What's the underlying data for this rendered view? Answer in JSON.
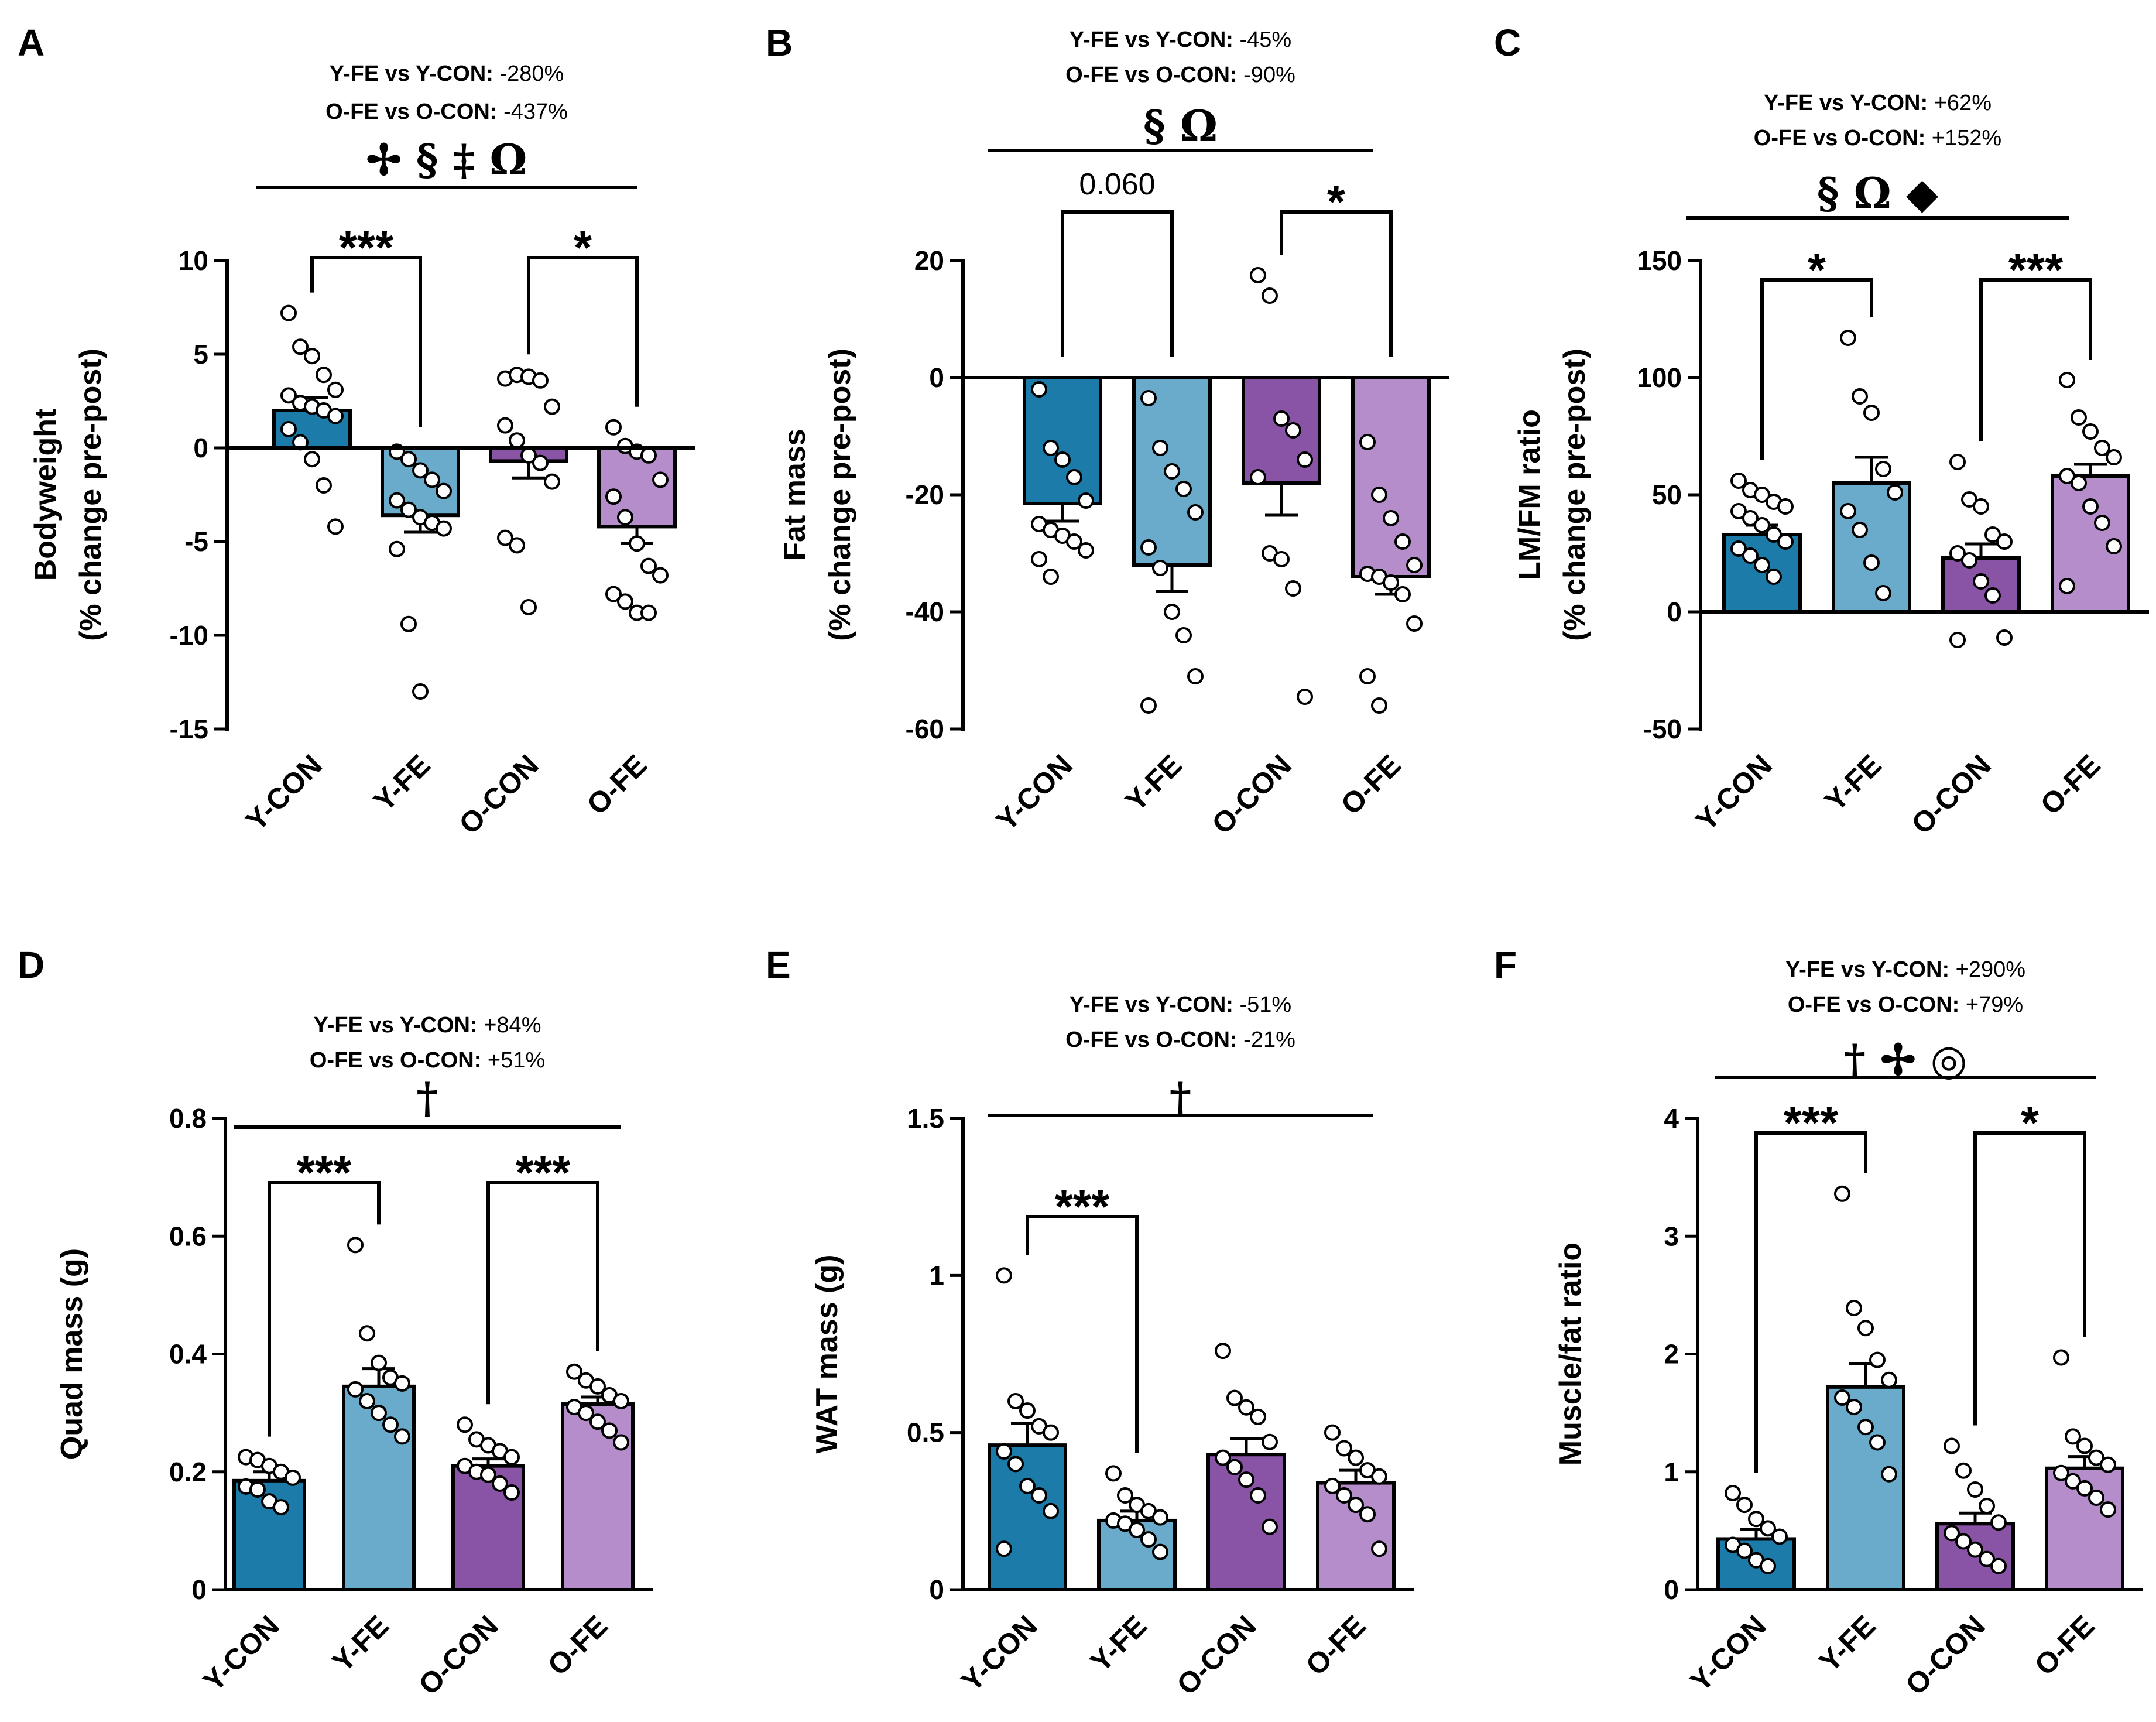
{
  "colors": {
    "Y-CON": "#1D7BAA",
    "Y-FE": "#6AAACB",
    "O-CON": "#8A54A6",
    "O-FE": "#B58DCB"
  },
  "chart_data": [
    {
      "panel": "A",
      "type": "bar",
      "categories": [
        "Y-CON",
        "Y-FE",
        "O-CON",
        "O-FE"
      ],
      "values": [
        2.0,
        -3.6,
        -0.7,
        -4.2
      ],
      "errors": [
        0.7,
        0.9,
        0.9,
        0.9
      ],
      "points": [
        [
          7.2,
          5.4,
          4.9,
          3.9,
          3.1,
          2.8,
          2.4,
          2.2,
          2.0,
          1.7,
          1.0,
          0.3,
          -0.6,
          -2.0,
          -4.2
        ],
        [
          -0.2,
          -0.6,
          -1.2,
          -1.7,
          -2.3,
          -2.8,
          -3.3,
          -3.7,
          -4.0,
          -4.3,
          -5.4,
          -9.4,
          -13.0
        ],
        [
          3.7,
          3.9,
          3.8,
          3.6,
          2.2,
          1.2,
          0.4,
          -0.4,
          -0.8,
          -1.8,
          -4.8,
          -5.2,
          -8.5
        ],
        [
          1.1,
          0.1,
          -0.2,
          -0.4,
          -1.7,
          -2.6,
          -3.7,
          -5.1,
          -6.3,
          -6.8,
          -7.8,
          -8.2,
          -8.8,
          -8.8
        ]
      ],
      "ylabel": [
        "Bodyweight",
        "(% change pre-post)"
      ],
      "ylim": [
        -15,
        10
      ],
      "yticks": [
        10,
        5,
        0,
        -5,
        -10,
        -15
      ],
      "comparisons": [
        "Y-FE vs Y-CON: -280%",
        "O-FE vs O-CON: -437%"
      ],
      "overall_symbols": "✢ § ‡ Ω",
      "brackets": [
        {
          "pair": [
            0,
            1
          ],
          "label": "***"
        },
        {
          "pair": [
            2,
            3
          ],
          "label": "*"
        }
      ]
    },
    {
      "panel": "B",
      "type": "bar",
      "categories": [
        "Y-CON",
        "Y-FE",
        "O-CON",
        "O-FE"
      ],
      "values": [
        -21.5,
        -32.0,
        -18.0,
        -34.0
      ],
      "errors": [
        3.0,
        4.5,
        5.5,
        3.0
      ],
      "points": [
        [
          -2.0,
          -12.0,
          -14.0,
          -17.0,
          -21.0,
          -25.0,
          -26.0,
          -27.0,
          -28.0,
          -29.5,
          -31.0,
          -34.0
        ],
        [
          -3.5,
          -12.0,
          -16.0,
          -19.0,
          -23.0,
          -29.0,
          -32.5,
          -40.0,
          -44.0,
          -51.0,
          -56.0
        ],
        [
          17.5,
          14.0,
          -7.0,
          -9.0,
          -14.0,
          -17.0,
          -30.0,
          -31.0,
          -36.0,
          -54.5
        ],
        [
          -11.0,
          -20.0,
          -24.0,
          -28.0,
          -32.0,
          -33.5,
          -34.0,
          -35.0,
          -37.0,
          -42.0,
          -51.0,
          -56.0
        ]
      ],
      "ylabel": [
        "Fat mass",
        "(% change pre-post)"
      ],
      "ylim": [
        -60,
        20
      ],
      "yticks": [
        20,
        0,
        -20,
        -40,
        -60
      ],
      "comparisons": [
        "Y-FE vs Y-CON: -45%",
        "O-FE vs O-CON: -90%"
      ],
      "overall_symbols": "§ Ω",
      "brackets": [
        {
          "pair": [
            0,
            1
          ],
          "label": "0.060"
        },
        {
          "pair": [
            2,
            3
          ],
          "label": "*"
        }
      ]
    },
    {
      "panel": "C",
      "type": "bar",
      "categories": [
        "Y-CON",
        "Y-FE",
        "O-CON",
        "O-FE"
      ],
      "values": [
        33.0,
        55.0,
        23.0,
        58.0
      ],
      "errors": [
        4.0,
        11.0,
        6.0,
        5.0
      ],
      "points": [
        [
          56.0,
          52.0,
          50.0,
          47.0,
          45.0,
          43.0,
          40.0,
          37.0,
          33.0,
          30.0,
          27.0,
          24.0,
          20.0,
          15.0
        ],
        [
          117.0,
          92.0,
          85.0,
          61.0,
          51.0,
          43.0,
          35.0,
          21.0,
          8.0
        ],
        [
          64.0,
          48.0,
          45.0,
          33.0,
          30.0,
          25.0,
          22.0,
          13.0,
          7.0,
          -11.0,
          -12.0
        ],
        [
          99.0,
          83.0,
          77.0,
          70.0,
          66.0,
          58.0,
          55.0,
          45.0,
          38.0,
          28.0,
          11.0
        ]
      ],
      "ylabel": [
        "LM/FM ratio",
        "(% change pre-post)"
      ],
      "ylim": [
        -50,
        150
      ],
      "yticks": [
        150,
        100,
        50,
        0,
        -50
      ],
      "comparisons": [
        "Y-FE vs Y-CON: +62%",
        "O-FE vs O-CON: +152%"
      ],
      "overall_symbols": "§ Ω ◆",
      "brackets": [
        {
          "pair": [
            0,
            1
          ],
          "label": "*"
        },
        {
          "pair": [
            2,
            3
          ],
          "label": "***"
        }
      ]
    },
    {
      "panel": "D",
      "type": "bar",
      "categories": [
        "Y-CON",
        "Y-FE",
        "O-CON",
        "O-FE"
      ],
      "values": [
        0.185,
        0.345,
        0.21,
        0.315
      ],
      "errors": [
        0.015,
        0.03,
        0.012,
        0.012
      ],
      "points": [
        [
          0.225,
          0.22,
          0.21,
          0.2,
          0.19,
          0.175,
          0.17,
          0.15,
          0.14
        ],
        [
          0.585,
          0.435,
          0.385,
          0.36,
          0.35,
          0.34,
          0.32,
          0.3,
          0.28,
          0.26
        ],
        [
          0.28,
          0.255,
          0.245,
          0.235,
          0.225,
          0.21,
          0.2,
          0.195,
          0.18,
          0.165
        ],
        [
          0.37,
          0.355,
          0.345,
          0.33,
          0.32,
          0.31,
          0.3,
          0.285,
          0.27,
          0.25
        ]
      ],
      "ylabel": [
        "Quad mass (g)"
      ],
      "ylim": [
        0.0,
        0.8
      ],
      "yticks": [
        0.8,
        0.6,
        0.4,
        0.2,
        0.0
      ],
      "comparisons": [
        "Y-FE vs Y-CON: +84%",
        "O-FE vs O-CON: +51%"
      ],
      "overall_symbols": "†",
      "brackets": [
        {
          "pair": [
            0,
            1
          ],
          "label": "***"
        },
        {
          "pair": [
            2,
            3
          ],
          "label": "***"
        }
      ]
    },
    {
      "panel": "E",
      "type": "bar",
      "categories": [
        "Y-CON",
        "Y-FE",
        "O-CON",
        "O-FE"
      ],
      "values": [
        0.46,
        0.22,
        0.43,
        0.34
      ],
      "errors": [
        0.07,
        0.03,
        0.05,
        0.04
      ],
      "points": [
        [
          1.0,
          0.6,
          0.57,
          0.52,
          0.5,
          0.44,
          0.4,
          0.33,
          0.3,
          0.25,
          0.13
        ],
        [
          0.37,
          0.3,
          0.27,
          0.25,
          0.23,
          0.22,
          0.21,
          0.19,
          0.16,
          0.12
        ],
        [
          0.76,
          0.61,
          0.58,
          0.55,
          0.47,
          0.42,
          0.39,
          0.35,
          0.3,
          0.2
        ],
        [
          0.5,
          0.45,
          0.42,
          0.38,
          0.36,
          0.33,
          0.3,
          0.27,
          0.24,
          0.13
        ]
      ],
      "ylabel": [
        "WAT mass (g)"
      ],
      "ylim": [
        0.0,
        1.5
      ],
      "yticks": [
        1.5,
        1.0,
        0.5,
        0.0
      ],
      "comparisons": [
        "Y-FE vs Y-CON: -51%",
        "O-FE vs O-CON: -21%"
      ],
      "overall_symbols": "†",
      "brackets": [
        {
          "pair": [
            0,
            1
          ],
          "label": "***"
        }
      ]
    },
    {
      "panel": "F",
      "type": "bar",
      "categories": [
        "Y-CON",
        "Y-FE",
        "O-CON",
        "O-FE"
      ],
      "values": [
        0.43,
        1.72,
        0.56,
        1.03
      ],
      "errors": [
        0.08,
        0.2,
        0.09,
        0.1
      ],
      "points": [
        [
          0.82,
          0.72,
          0.6,
          0.52,
          0.45,
          0.38,
          0.33,
          0.25,
          0.2
        ],
        [
          3.36,
          2.39,
          2.22,
          1.95,
          1.78,
          1.63,
          1.55,
          1.38,
          1.25,
          0.98
        ],
        [
          1.22,
          1.01,
          0.85,
          0.71,
          0.57,
          0.48,
          0.41,
          0.34,
          0.26,
          0.2
        ],
        [
          1.97,
          1.3,
          1.22,
          1.12,
          1.06,
          0.99,
          0.92,
          0.86,
          0.78,
          0.68
        ]
      ],
      "ylabel": [
        "Muscle/fat ratio"
      ],
      "ylim": [
        0,
        4
      ],
      "yticks": [
        4,
        3,
        2,
        1,
        0
      ],
      "comparisons": [
        "Y-FE vs Y-CON: +290%",
        "O-FE vs O-CON: +79%"
      ],
      "overall_symbols": "† ✢ ◎",
      "brackets": [
        {
          "pair": [
            0,
            1
          ],
          "label": "***"
        },
        {
          "pair": [
            2,
            3
          ],
          "label": "*"
        }
      ]
    }
  ]
}
